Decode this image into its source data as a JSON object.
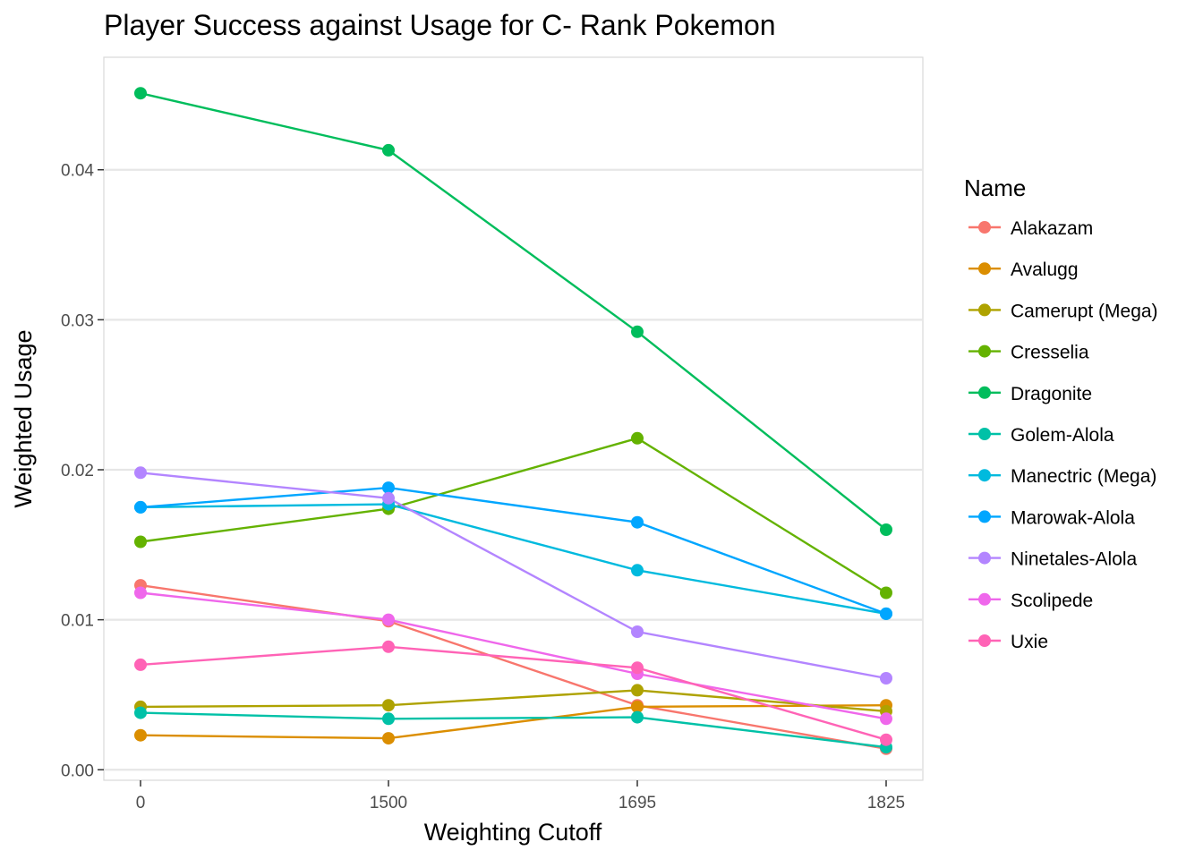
{
  "chart_data": {
    "type": "line",
    "title": "Player Success against Usage for C- Rank Pokemon",
    "xlabel": "Weighting Cutoff",
    "ylabel": "Weighted Usage",
    "x": [
      "0",
      "1500",
      "1695",
      "1825"
    ],
    "y_ticks": [
      "0.00",
      "0.01",
      "0.02",
      "0.03",
      "0.04"
    ],
    "ylim": [
      -0.0007,
      0.0475
    ],
    "grid": true,
    "legend_title": "Name",
    "legend_position": "right",
    "series": [
      {
        "name": "Alakazam",
        "color": "#F8766D",
        "values": [
          0.0123,
          0.0099,
          0.0043,
          0.0014
        ]
      },
      {
        "name": "Avalugg",
        "color": "#DB8E00",
        "values": [
          0.0023,
          0.0021,
          0.0042,
          0.0043
        ]
      },
      {
        "name": "Camerupt (Mega)",
        "color": "#AEA200",
        "values": [
          0.0042,
          0.0043,
          0.0053,
          0.0039
        ]
      },
      {
        "name": "Cresselia",
        "color": "#64B200",
        "values": [
          0.0152,
          0.0174,
          0.0221,
          0.0118
        ]
      },
      {
        "name": "Dragonite",
        "color": "#00BD5C",
        "values": [
          0.0451,
          0.0413,
          0.0292,
          0.016
        ]
      },
      {
        "name": "Golem-Alola",
        "color": "#00C1A7",
        "values": [
          0.0038,
          0.0034,
          0.0035,
          0.0015
        ]
      },
      {
        "name": "Manectric (Mega)",
        "color": "#00BADE",
        "values": [
          0.0175,
          0.0177,
          0.0133,
          0.0104
        ]
      },
      {
        "name": "Marowak-Alola",
        "color": "#00A6FF",
        "values": [
          0.0175,
          0.0188,
          0.0165,
          0.0104
        ]
      },
      {
        "name": "Ninetales-Alola",
        "color": "#B385FF",
        "values": [
          0.0198,
          0.0181,
          0.0092,
          0.0061
        ]
      },
      {
        "name": "Scolipede",
        "color": "#EF67EB",
        "values": [
          0.0118,
          0.01,
          0.0064,
          0.0034
        ]
      },
      {
        "name": "Uxie",
        "color": "#FF63B6",
        "values": [
          0.007,
          0.0082,
          0.0068,
          0.002
        ]
      }
    ]
  }
}
